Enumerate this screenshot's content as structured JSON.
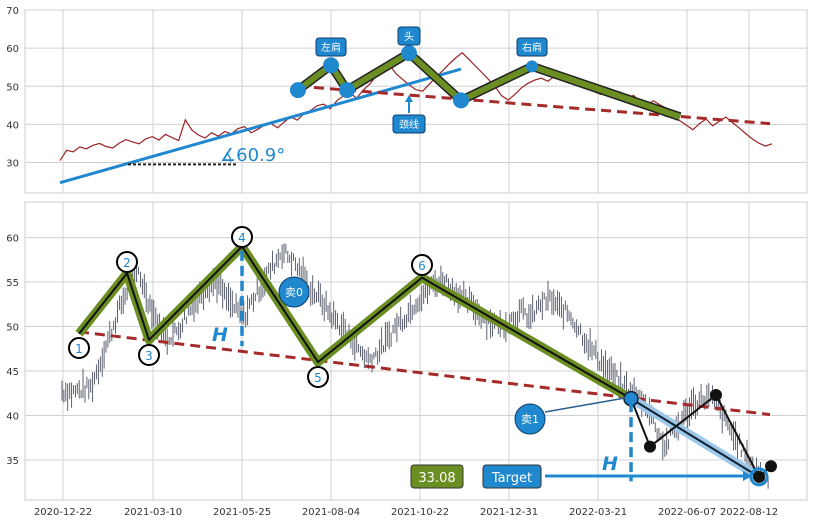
{
  "chart_data": {
    "type": "line",
    "top_panel": {
      "ylim": [
        22,
        70
      ],
      "y_ticks": [
        30,
        40,
        50,
        60,
        70
      ],
      "series_color": "#9b2226",
      "close": [
        30.5,
        33.2,
        32.8,
        34.1,
        33.6,
        34.5,
        35.0,
        34.2,
        33.8,
        35.1,
        36.0,
        35.4,
        34.9,
        36.2,
        36.8,
        35.9,
        37.4,
        36.5,
        35.8,
        41.2,
        38.5,
        37.2,
        36.4,
        37.8,
        36.9,
        38.1,
        37.5,
        38.9,
        39.4,
        37.8,
        38.7,
        39.8,
        40.2,
        39.1,
        40.6,
        42.0,
        41.1,
        42.8,
        43.6,
        44.9,
        45.3,
        44.1,
        46.2,
        47.5,
        48.2,
        46.9,
        49.0,
        50.6,
        52.8,
        54.5,
        55.6,
        53.2,
        51.8,
        50.3,
        49.1,
        48.7,
        50.5,
        52.4,
        54.0,
        55.8,
        57.4,
        58.8,
        57.1,
        55.3,
        53.6,
        51.8,
        49.9,
        47.5,
        46.4,
        47.9,
        49.6,
        50.8,
        51.6,
        52.1,
        51.3,
        52.6,
        53.5,
        52.4,
        51.1,
        50.6,
        49.8,
        48.6,
        47.9,
        49.1,
        47.2,
        48.5,
        46.8,
        47.6,
        45.9,
        44.8,
        46.2,
        45.1,
        44.2,
        42.5,
        41.0,
        39.8,
        38.6,
        40.2,
        41.4,
        39.6,
        40.8,
        41.9,
        40.5,
        39.1,
        37.6,
        36.2,
        35.1,
        34.3,
        34.9
      ]
    },
    "bottom_panel": {
      "ylim": [
        30.5,
        64
      ],
      "y_ticks": [
        35,
        40,
        45,
        50,
        55,
        60
      ],
      "close": [
        42.8,
        42.6,
        42.9,
        43.1,
        46.0,
        49.0,
        52.0,
        54.5,
        56.2,
        53.0,
        50.5,
        48.7,
        49.5,
        51.2,
        53.0,
        54.3,
        55.1,
        53.4,
        52.1,
        51.0,
        53.2,
        55.0,
        56.8,
        58.5,
        57.6,
        56.0,
        54.2,
        53.1,
        51.5,
        50.2,
        48.9,
        47.5,
        46.3,
        47.1,
        48.6,
        50.2,
        51.3,
        52.8,
        53.9,
        54.9,
        55.3,
        54.1,
        53.0,
        52.3,
        51.1,
        50.6,
        49.8,
        50.9,
        51.6,
        51.0,
        52.5,
        53.1,
        52.0,
        51.4,
        49.8,
        48.0,
        46.5,
        45.2,
        44.0,
        43.1,
        42.2,
        41.6,
        39.0,
        36.5,
        38.2,
        39.9,
        41.3,
        42.0,
        41.8,
        40.0,
        38.1,
        36.3,
        34.5,
        33.4,
        33.1
      ]
    },
    "x_tick_labels": [
      "2020-12-22",
      "2021-03-10",
      "2021-05-25",
      "2021-08-04",
      "2021-10-22",
      "2021-12-31",
      "2022-03-21",
      "2022-06-07",
      "2022-08-12"
    ],
    "pattern_top": {
      "labels": {
        "left_shoulder": "左肩",
        "head": "头",
        "right_shoulder": "右肩",
        "neckline": "颈线"
      },
      "angle_text": "∡60.9°"
    },
    "pattern_bottom": {
      "points": [
        "1",
        "2",
        "3",
        "4",
        "5",
        "6"
      ],
      "sell_labels": [
        "卖0",
        "卖1"
      ],
      "height_label": "H",
      "target_label": "Target",
      "target_value": "33.08"
    },
    "colors": {
      "price": "#9b2226",
      "neckline": "#a52a2a",
      "trend": "#1f88cf",
      "pattern_fill": "#6b8e23",
      "label_bg": "#1f88cf",
      "value_bg": "#6b8e23",
      "grid": "#d0d0d0"
    }
  }
}
